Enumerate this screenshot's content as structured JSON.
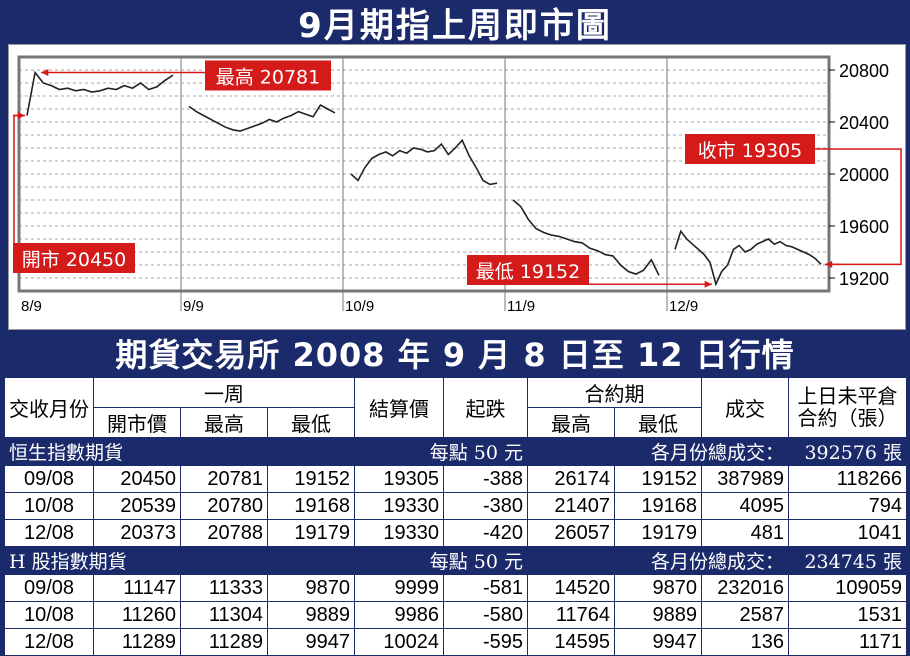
{
  "chart_title": "9月期指上周即市圖",
  "table_title": "期貨交易所 2008 年 9 月 8 日至 12 日行情",
  "chart_data": {
    "type": "line",
    "title": "9月期指上周即市圖",
    "x_labels": [
      "8/9",
      "9/9",
      "10/9",
      "11/9",
      "12/9"
    ],
    "y_ticks": [
      19200,
      19600,
      20000,
      20400,
      20800
    ],
    "ylim": [
      19100,
      20900
    ],
    "grid": true,
    "annotations": [
      {
        "text": "最高 20781",
        "value": 20781,
        "day": 0
      },
      {
        "text": "開市 20450",
        "value": 20450,
        "day": 0
      },
      {
        "text": "收市 19305",
        "value": 19305,
        "day": 4
      },
      {
        "text": "最低 19152",
        "value": 19152,
        "day": 4
      }
    ],
    "series": [
      {
        "day": "8/9",
        "values": [
          20450,
          20781,
          20700,
          20680,
          20650,
          20660,
          20640,
          20650,
          20630,
          20640,
          20660,
          20650,
          20680,
          20660,
          20700,
          20650,
          20670,
          20720,
          20760
        ]
      },
      {
        "day": "9/9",
        "values": [
          20520,
          20480,
          20450,
          20420,
          20390,
          20360,
          20340,
          20330,
          20350,
          20370,
          20390,
          20420,
          20400,
          20430,
          20450,
          20480,
          20460,
          20440,
          20530,
          20500,
          20470
        ]
      },
      {
        "day": "10/9",
        "values": [
          20000,
          19950,
          20050,
          20120,
          20150,
          20170,
          20140,
          20180,
          20160,
          20200,
          20190,
          20170,
          20180,
          20230,
          20150,
          20200,
          20260,
          20140,
          20050,
          19950,
          19920,
          19930
        ]
      },
      {
        "day": "11/9",
        "values": [
          19800,
          19750,
          19650,
          19580,
          19550,
          19530,
          19520,
          19500,
          19480,
          19470,
          19430,
          19410,
          19380,
          19370,
          19300,
          19250,
          19230,
          19260,
          19340,
          19220
        ]
      },
      {
        "day": "12/9",
        "values": [
          19420,
          19560,
          19500,
          19460,
          19420,
          19380,
          19320,
          19152,
          19250,
          19300,
          19420,
          19450,
          19400,
          19420,
          19460,
          19480,
          19500,
          19460,
          19480,
          19450,
          19440,
          19420,
          19400,
          19380,
          19350,
          19305
        ]
      }
    ]
  },
  "table": {
    "headers": {
      "month": "交收月份",
      "week": "一周",
      "open": "開市價",
      "high": "最高",
      "low": "最低",
      "settle": "結算價",
      "change": "起跌",
      "contract_period": "合約期",
      "cp_high": "最高",
      "cp_low": "最低",
      "volume": "成交",
      "oi_line1": "上日未平倉",
      "oi_line2": "合約（張）"
    },
    "sections": [
      {
        "name": "恒生指數期貨",
        "unit": "每點 50 元",
        "total_label": "各月份總成交：",
        "total": "392576 張",
        "rows": [
          [
            "09/08",
            "20450",
            "20781",
            "19152",
            "19305",
            "-388",
            "26174",
            "19152",
            "387989",
            "118266"
          ],
          [
            "10/08",
            "20539",
            "20780",
            "19168",
            "19330",
            "-380",
            "21407",
            "19168",
            "4095",
            "794"
          ],
          [
            "12/08",
            "20373",
            "20788",
            "19179",
            "19330",
            "-420",
            "26057",
            "19179",
            "481",
            "1041"
          ]
        ]
      },
      {
        "name": "H 股指數期貨",
        "unit": "每點 50 元",
        "total_label": "各月份總成交：",
        "total": "234745 張",
        "rows": [
          [
            "09/08",
            "11147",
            "11333",
            "9870",
            "9999",
            "-581",
            "14520",
            "9870",
            "232016",
            "109059"
          ],
          [
            "10/08",
            "11260",
            "11304",
            "9889",
            "9986",
            "-580",
            "11764",
            "9889",
            "2587",
            "1531"
          ],
          [
            "12/08",
            "11289",
            "11289",
            "9947",
            "10024",
            "-595",
            "14595",
            "9947",
            "136",
            "1171"
          ]
        ]
      }
    ]
  },
  "colors": {
    "background": "#1b2a6b",
    "annotation": "#d51a1a",
    "line": "#222222",
    "grid": "#888888"
  }
}
